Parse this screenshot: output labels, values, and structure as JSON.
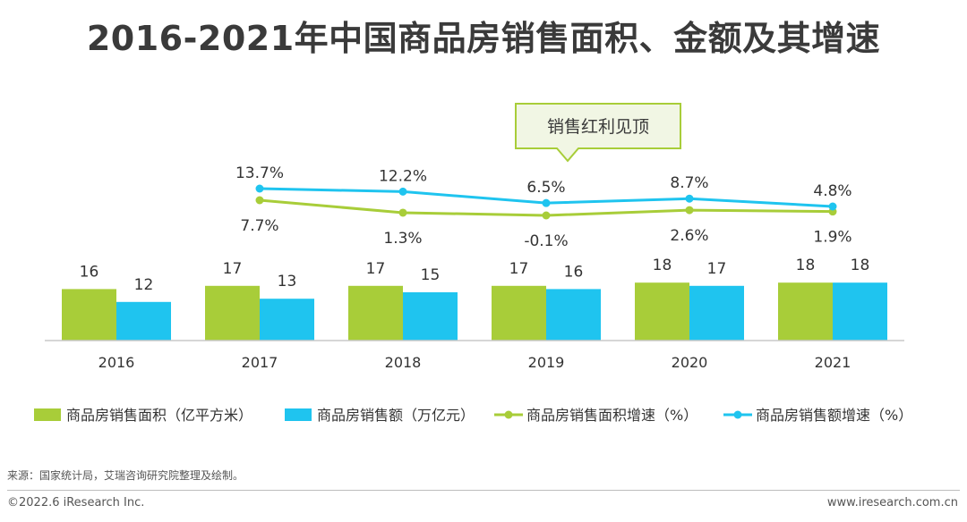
{
  "title": "2016-2021年中国商品房销售面积、金额及其增速",
  "callout": "销售红利见顶",
  "source": "来源：国家统计局，艾瑞咨询研究院整理及绘制。",
  "footer": {
    "copyright": "©2022.6 iResearch Inc.",
    "website": "www.iresearch.com.cn"
  },
  "colors": {
    "area_bar": "#a8cd39",
    "amount_bar": "#1fc4ef",
    "area_line": "#a8cd39",
    "amount_line": "#1fc4ef"
  },
  "chart_data": {
    "type": "bar",
    "categories": [
      "2016",
      "2017",
      "2018",
      "2019",
      "2020",
      "2021"
    ],
    "series": [
      {
        "name": "商品房销售面积（亿平方米）",
        "type": "bar",
        "values": [
          16,
          17,
          17,
          17,
          18,
          18
        ],
        "labels": [
          "16",
          "17",
          "17",
          "17",
          "18",
          "18"
        ]
      },
      {
        "name": "商品房销售额（万亿元）",
        "type": "bar",
        "values": [
          12,
          13,
          15,
          16,
          17,
          18
        ],
        "labels": [
          "12",
          "13",
          "15",
          "16",
          "17",
          "18"
        ]
      },
      {
        "name": "商品房销售面积增速（%）",
        "type": "line",
        "values": [
          null,
          7.7,
          1.3,
          -0.1,
          2.6,
          1.9
        ],
        "labels": [
          "",
          "7.7%",
          "1.3%",
          "-0.1%",
          "2.6%",
          "1.9%"
        ]
      },
      {
        "name": "商品房销售额增速（%）",
        "type": "line",
        "values": [
          null,
          13.7,
          12.2,
          6.5,
          8.7,
          4.8
        ],
        "labels": [
          "",
          "13.7%",
          "12.2%",
          "6.5%",
          "8.7%",
          "4.8%"
        ]
      }
    ],
    "legend_position": "bottom",
    "grid": false
  }
}
